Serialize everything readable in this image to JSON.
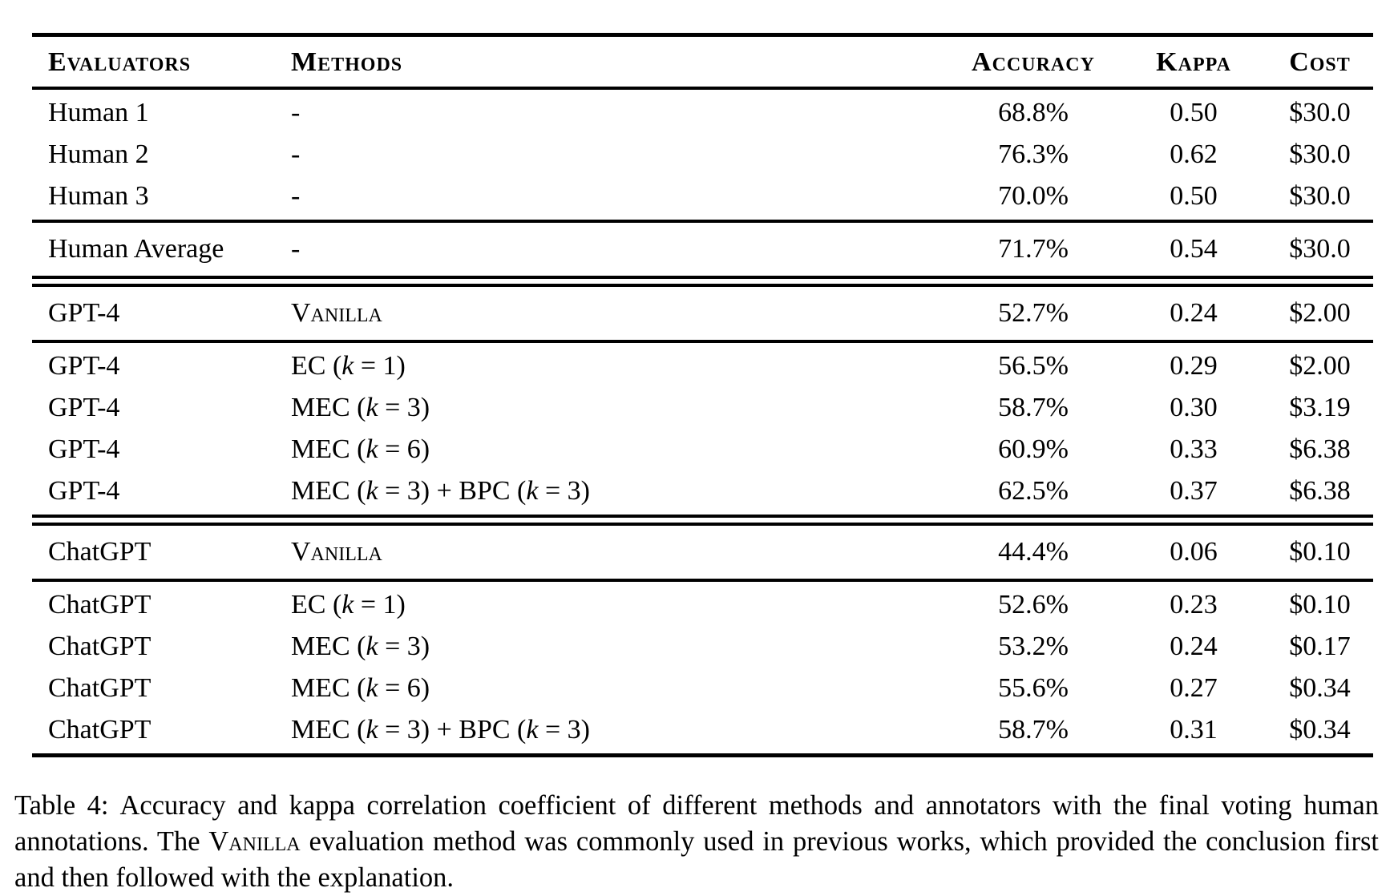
{
  "colors": {
    "text": "#000000",
    "background": "#ffffff",
    "rule": "#000000"
  },
  "table": {
    "columns": [
      {
        "key": "evaluator",
        "label": "Evaluators",
        "align": "left"
      },
      {
        "key": "method",
        "label": "Methods",
        "align": "left"
      },
      {
        "key": "accuracy",
        "label": "Accuracy",
        "align": "center"
      },
      {
        "key": "kappa",
        "label": "Kappa",
        "align": "center"
      },
      {
        "key": "cost",
        "label": "Cost",
        "align": "center"
      }
    ],
    "sections": [
      {
        "name": "human-individual",
        "divider_after": "single",
        "rows": [
          {
            "evaluator": "Human 1",
            "method": "-",
            "accuracy": "68.8%",
            "kappa": "0.50",
            "cost": "$30.0"
          },
          {
            "evaluator": "Human 2",
            "method": "-",
            "accuracy": "76.3%",
            "kappa": "0.62",
            "cost": "$30.0"
          },
          {
            "evaluator": "Human 3",
            "method": "-",
            "accuracy": "70.0%",
            "kappa": "0.50",
            "cost": "$30.0"
          }
        ]
      },
      {
        "name": "human-average",
        "divider_after": "double",
        "rows": [
          {
            "evaluator": "Human Average",
            "method": "-",
            "accuracy": "71.7%",
            "kappa": "0.54",
            "cost": "$30.0"
          }
        ]
      },
      {
        "name": "gpt4-vanilla",
        "divider_after": "single",
        "rows": [
          {
            "evaluator": "GPT-4",
            "method": "Vanilla",
            "method_smallcaps": true,
            "accuracy": "52.7%",
            "kappa": "0.24",
            "cost": "$2.00"
          }
        ]
      },
      {
        "name": "gpt4-methods",
        "divider_after": "double",
        "rows": [
          {
            "evaluator": "GPT-4",
            "method": "EC (*k* = 1)",
            "accuracy": "56.5%",
            "kappa": "0.29",
            "cost": "$2.00"
          },
          {
            "evaluator": "GPT-4",
            "method": "MEC (*k* = 3)",
            "accuracy": "58.7%",
            "kappa": "0.30",
            "cost": "$3.19"
          },
          {
            "evaluator": "GPT-4",
            "method": "MEC (*k* = 6)",
            "accuracy": "60.9%",
            "kappa": "0.33",
            "cost": "$6.38"
          },
          {
            "evaluator": "GPT-4",
            "method": "MEC (*k* = 3) + BPC (*k* = 3)",
            "accuracy": "62.5%",
            "kappa": "0.37",
            "cost": "$6.38"
          }
        ]
      },
      {
        "name": "chatgpt-vanilla",
        "divider_after": "single",
        "rows": [
          {
            "evaluator": "ChatGPT",
            "method": "Vanilla",
            "method_smallcaps": true,
            "accuracy": "44.4%",
            "kappa": "0.06",
            "cost": "$0.10"
          }
        ]
      },
      {
        "name": "chatgpt-methods",
        "divider_after": "none",
        "rows": [
          {
            "evaluator": "ChatGPT",
            "method": "EC (*k* = 1)",
            "accuracy": "52.6%",
            "kappa": "0.23",
            "cost": "$0.10"
          },
          {
            "evaluator": "ChatGPT",
            "method": "MEC (*k* = 3)",
            "accuracy": "53.2%",
            "kappa": "0.24",
            "cost": "$0.17"
          },
          {
            "evaluator": "ChatGPT",
            "method": "MEC (*k* = 6)",
            "accuracy": "55.6%",
            "kappa": "0.27",
            "cost": "$0.34"
          },
          {
            "evaluator": "ChatGPT",
            "method": "MEC (*k* = 3) + BPC (*k* = 3)",
            "accuracy": "58.7%",
            "kappa": "0.31",
            "cost": "$0.34"
          }
        ]
      }
    ]
  },
  "caption": {
    "label": "Table 4:",
    "part1": "Accuracy and kappa correlation coefficient of different methods and annotators with the final voting human annotations. The ",
    "vanilla": "Vanilla",
    "part2": " evaluation method was commonly used in previous works, which provided the conclusion first and then followed with the explanation."
  }
}
